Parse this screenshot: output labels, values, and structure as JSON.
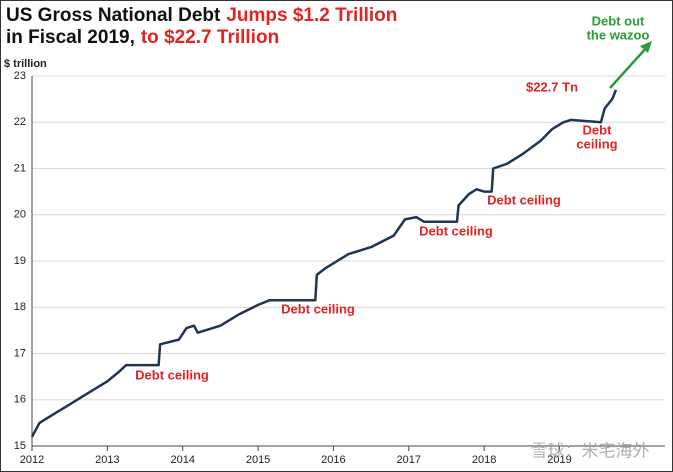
{
  "chart_data": {
    "type": "line",
    "title": [
      [
        {
          "text": "US Gross National Debt",
          "color": "#111111"
        },
        {
          "text": "Jumps $1.2 Trillion",
          "color": "#e02424"
        }
      ],
      [
        {
          "text": "in Fiscal 2019,",
          "color": "#111111"
        },
        {
          "text": "to $22.7 Trillion",
          "color": "#e02424"
        }
      ]
    ],
    "y_label": "$ trillion",
    "color": "#1f3550",
    "x": [
      2012.0,
      2012.1,
      2012.3,
      2012.5,
      2012.7,
      2012.9,
      2013.0,
      2013.15,
      2013.25,
      2013.68,
      2013.7,
      2013.95,
      2014.05,
      2014.15,
      2014.2,
      2014.5,
      2014.75,
      2015.0,
      2015.15,
      2015.76,
      2015.78,
      2015.9,
      2016.2,
      2016.5,
      2016.8,
      2016.95,
      2017.1,
      2017.2,
      2017.64,
      2017.66,
      2017.8,
      2017.9,
      2018.0,
      2018.1,
      2018.12,
      2018.3,
      2018.5,
      2018.75,
      2018.9,
      2019.05,
      2019.15,
      2019.55,
      2019.6,
      2019.7,
      2019.75
    ],
    "values": [
      15.2,
      15.5,
      15.7,
      15.9,
      16.1,
      16.3,
      16.4,
      16.6,
      16.75,
      16.75,
      17.2,
      17.3,
      17.55,
      17.6,
      17.45,
      17.6,
      17.85,
      18.05,
      18.15,
      18.15,
      18.7,
      18.85,
      19.15,
      19.3,
      19.55,
      19.9,
      19.95,
      19.85,
      19.85,
      20.2,
      20.45,
      20.55,
      20.5,
      20.5,
      21.0,
      21.1,
      21.3,
      21.6,
      21.85,
      22.0,
      22.05,
      22.0,
      22.3,
      22.5,
      22.7
    ],
    "xlim": [
      2012,
      2020.4
    ],
    "ylim": [
      15,
      23
    ],
    "xticks": [
      2012,
      2013,
      2014,
      2015,
      2016,
      2017,
      2018,
      2019
    ],
    "yticks": [
      15,
      16,
      17,
      18,
      19,
      20,
      21,
      22,
      23
    ],
    "grid": true,
    "annotations": [
      {
        "lines": [
          "Debt ceiling"
        ],
        "color": "#e02424"
      },
      {
        "lines": [
          "Debt ceiling"
        ],
        "color": "#e02424"
      },
      {
        "lines": [
          "Debt ceiling"
        ],
        "color": "#e02424"
      },
      {
        "lines": [
          "Debt ceiling"
        ],
        "color": "#e02424"
      },
      {
        "lines": [
          "Debt",
          "ceiling"
        ],
        "color": "#e02424"
      },
      {
        "lines": [
          "$22.7 Tn"
        ],
        "color": "#e02424"
      },
      {
        "lines": [
          "Debt out",
          "the wazoo"
        ],
        "color": "#2a9a3a"
      }
    ],
    "watermark": "雪球：米宅海外"
  }
}
